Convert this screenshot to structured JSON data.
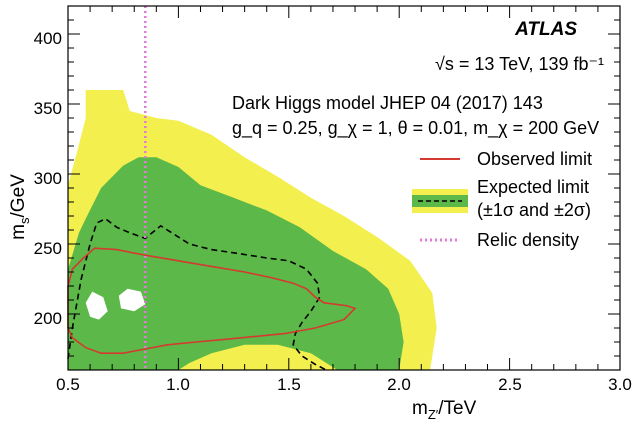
{
  "chart_data": {
    "type": "contour",
    "experiment": "ATLAS",
    "energy_lumi": "√s = 13 TeV, 139 fb⁻¹",
    "model": "Dark Higgs model JHEP 04 (2017) 143",
    "couplings": "g_q = 0.25, g_χ = 1, θ = 0.01, m_χ = 200 GeV",
    "xlabel": "m_Z′/TeV",
    "ylabel": "m_s/GeV",
    "xlim": [
      0.5,
      3.0
    ],
    "ylim": [
      160,
      420
    ],
    "x_ticks": [
      "0.5",
      "1.0",
      "1.5",
      "2.0",
      "2.5",
      "3.0"
    ],
    "y_ticks": [
      "200",
      "250",
      "300",
      "350",
      "400"
    ],
    "legend": {
      "observed": "Observed limit",
      "expected_line1": "Expected limit",
      "expected_line2": "(±1σ and ±2σ)",
      "relic": "Relic density"
    },
    "colors": {
      "observed": "#d43a2f",
      "expected": "#000000",
      "band_1sigma": "#5cb848",
      "band_2sigma": "#f2ef4f",
      "relic": "#e07ad6"
    },
    "relic_density_x": 0.85,
    "band_2sigma": [
      [
        0.5,
        160
      ],
      [
        0.5,
        292
      ],
      [
        0.54,
        315
      ],
      [
        0.58,
        340
      ],
      [
        0.58,
        360
      ],
      [
        0.75,
        360
      ],
      [
        0.78,
        345
      ],
      [
        0.9,
        340
      ],
      [
        1.0,
        338
      ],
      [
        1.15,
        328
      ],
      [
        1.3,
        312
      ],
      [
        1.45,
        298
      ],
      [
        1.6,
        283
      ],
      [
        1.75,
        270
      ],
      [
        1.9,
        255
      ],
      [
        2.05,
        238
      ],
      [
        2.15,
        215
      ],
      [
        2.17,
        190
      ],
      [
        2.14,
        160
      ]
    ],
    "band_1sigma": [
      [
        0.5,
        160
      ],
      [
        0.5,
        232
      ],
      [
        0.55,
        258
      ],
      [
        0.58,
        268
      ],
      [
        0.65,
        290
      ],
      [
        0.75,
        306
      ],
      [
        0.82,
        312
      ],
      [
        0.9,
        312
      ],
      [
        1.0,
        305
      ],
      [
        1.1,
        292
      ],
      [
        1.25,
        283
      ],
      [
        1.4,
        274
      ],
      [
        1.55,
        262
      ],
      [
        1.7,
        245
      ],
      [
        1.85,
        232
      ],
      [
        1.95,
        218
      ],
      [
        2.0,
        200
      ],
      [
        2.02,
        180
      ],
      [
        2.0,
        160
      ],
      [
        1.72,
        160
      ],
      [
        1.6,
        172
      ],
      [
        1.45,
        178
      ],
      [
        1.3,
        178
      ],
      [
        1.15,
        172
      ],
      [
        1.05,
        165
      ],
      [
        1.0,
        160
      ]
    ],
    "holes": [
      [
        [
          0.58,
          208
        ],
        [
          0.61,
          216
        ],
        [
          0.66,
          212
        ],
        [
          0.68,
          202
        ],
        [
          0.64,
          196
        ],
        [
          0.6,
          198
        ]
      ],
      [
        [
          0.73,
          213
        ],
        [
          0.77,
          218
        ],
        [
          0.83,
          216
        ],
        [
          0.85,
          207
        ],
        [
          0.8,
          202
        ],
        [
          0.74,
          204
        ]
      ]
    ],
    "expected_limit": [
      [
        0.5,
        168
      ],
      [
        0.52,
        190
      ],
      [
        0.56,
        225
      ],
      [
        0.6,
        250
      ],
      [
        0.63,
        265
      ],
      [
        0.67,
        268
      ],
      [
        0.72,
        262
      ],
      [
        0.78,
        258
      ],
      [
        0.85,
        254
      ],
      [
        0.92,
        263
      ],
      [
        0.97,
        258
      ],
      [
        1.05,
        250
      ],
      [
        1.15,
        246
      ],
      [
        1.28,
        243
      ],
      [
        1.4,
        240
      ],
      [
        1.5,
        238
      ],
      [
        1.58,
        232
      ],
      [
        1.63,
        222
      ],
      [
        1.64,
        212
      ],
      [
        1.6,
        202
      ],
      [
        1.56,
        194
      ],
      [
        1.53,
        186
      ],
      [
        1.52,
        178
      ],
      [
        1.56,
        170
      ],
      [
        1.62,
        164
      ],
      [
        1.67,
        160
      ]
    ],
    "observed_limit": [
      [
        0.5,
        200
      ],
      [
        0.5,
        220
      ],
      [
        0.52,
        232
      ],
      [
        0.57,
        240
      ],
      [
        0.62,
        247
      ],
      [
        0.72,
        246
      ],
      [
        0.85,
        242
      ],
      [
        1.0,
        238
      ],
      [
        1.15,
        234
      ],
      [
        1.3,
        230
      ],
      [
        1.42,
        226
      ],
      [
        1.52,
        222
      ],
      [
        1.58,
        218
      ],
      [
        1.62,
        212
      ],
      [
        1.66,
        208
      ],
      [
        1.76,
        206
      ],
      [
        1.8,
        204
      ],
      [
        1.75,
        196
      ],
      [
        1.62,
        190
      ],
      [
        1.48,
        186
      ],
      [
        1.35,
        184
      ],
      [
        1.22,
        182
      ],
      [
        1.08,
        180
      ],
      [
        0.95,
        178
      ],
      [
        0.85,
        175
      ],
      [
        0.75,
        172
      ],
      [
        0.65,
        172
      ],
      [
        0.58,
        176
      ],
      [
        0.52,
        183
      ],
      [
        0.5,
        190
      ]
    ]
  }
}
